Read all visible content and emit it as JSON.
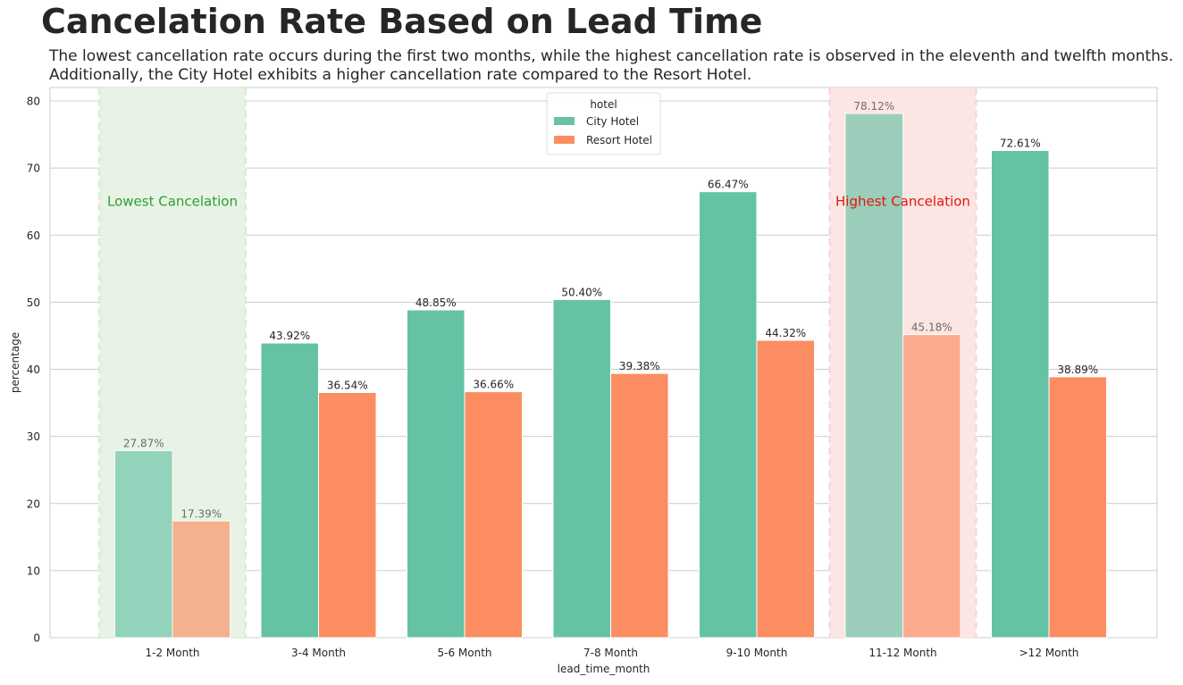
{
  "title": "Cancelation Rate Based on Lead Time",
  "subtitle": [
    "The lowest cancellation rate occurs during the first two months, while the highest cancellation rate is observed in the eleventh and twelfth months.",
    "Additionally, the City Hotel exhibits a higher cancellation rate compared to the Resort Hotel."
  ],
  "chart_data": {
    "type": "bar",
    "xlabel": "lead_time_month",
    "ylabel": "percentage",
    "ylim": [
      0,
      82
    ],
    "yticks": [
      0,
      10,
      20,
      30,
      40,
      50,
      60,
      70,
      80
    ],
    "grid": true,
    "categories": [
      "1-2 Month",
      "3-4 Month",
      "5-6 Month",
      "7-8 Month",
      "9-10 Month",
      "11-12 Month",
      ">12 Month"
    ],
    "legend": {
      "title": "hotel",
      "placement": "top-center"
    },
    "series": [
      {
        "name": "City Hotel",
        "color": "#66c2a5",
        "values": [
          27.87,
          43.92,
          48.85,
          50.4,
          66.47,
          78.12,
          72.61
        ],
        "labels": [
          "27.87%",
          "43.92%",
          "48.85%",
          "50.40%",
          "66.47%",
          "78.12%",
          "72.61%"
        ]
      },
      {
        "name": "Resort Hotel",
        "color": "#fc8d62",
        "values": [
          17.39,
          36.54,
          36.66,
          39.38,
          44.32,
          45.18,
          38.89
        ],
        "labels": [
          "17.39%",
          "36.54%",
          "36.66%",
          "39.38%",
          "44.32%",
          "45.18%",
          "38.89%"
        ]
      }
    ],
    "annotations": [
      {
        "text": "Lowest Cancelation",
        "category": "1-2 Month",
        "y": 65,
        "color": "#2ca02c",
        "fill": "#e8f3e6",
        "border": "#d6ecd2"
      },
      {
        "text": "Highest Cancelation",
        "category": "11-12 Month",
        "y": 65,
        "color": "#e3170a",
        "fill": "#fbe6e4",
        "border": "#f7d3d6"
      }
    ]
  }
}
